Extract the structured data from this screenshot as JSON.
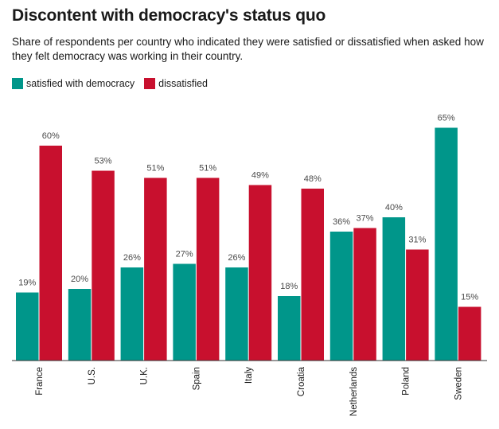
{
  "chart_data": {
    "type": "bar",
    "title": "Discontent with democracy's status quo",
    "subtitle": "Share of respondents per country who indicated they were satisfied or dissatisfied when asked how they felt democracy was working in their country.",
    "categories": [
      "France",
      "U.S.",
      "U.K.",
      "Spain",
      "Italy",
      "Croatia",
      "Netherlands",
      "Poland",
      "Sweden"
    ],
    "series": [
      {
        "name": "satisfied with democracy",
        "color": "#00968a",
        "values": [
          19,
          20,
          26,
          27,
          26,
          18,
          36,
          40,
          65
        ],
        "labels": [
          "19%",
          "20%",
          "26%",
          "27%",
          "26%",
          "18%",
          "36%",
          "40%",
          "65%"
        ]
      },
      {
        "name": "dissatisfied",
        "color": "#c8102e",
        "values": [
          60,
          53,
          51,
          51,
          49,
          48,
          37,
          31,
          15
        ],
        "labels": [
          "60%",
          "53%",
          "51%",
          "51%",
          "49%",
          "48%",
          "37%",
          "31%",
          "15%"
        ]
      }
    ],
    "xlabel": "",
    "ylabel": "",
    "ylim": [
      0,
      65
    ],
    "grid": false,
    "legend": "top-left"
  }
}
